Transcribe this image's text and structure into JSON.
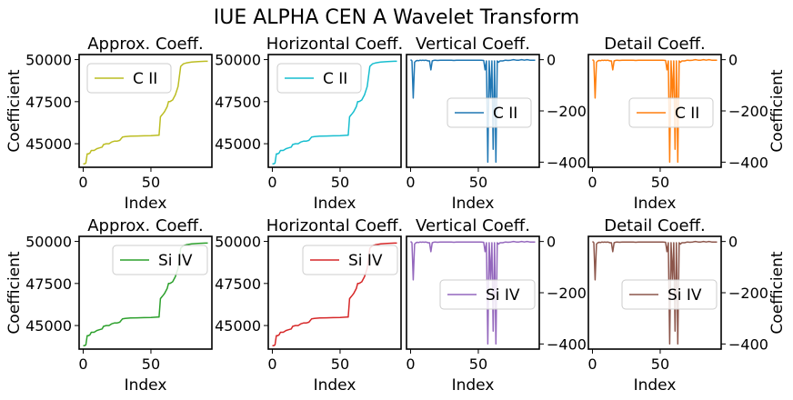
{
  "figure": {
    "title": "IUE ALPHA CEN A Wavelet Transform"
  },
  "chart_data": [
    {
      "type": "line",
      "title": "Approx. Coeff.",
      "xlabel": "Index",
      "ylabel": "Coefficient",
      "yticks": [
        45000,
        47500,
        50000
      ],
      "xticks": [
        0,
        50
      ],
      "xlim": [
        -3,
        95
      ],
      "ylim": [
        43600,
        50300
      ],
      "legend_position": "upper left",
      "series": [
        {
          "name": "C II",
          "color": "#bcbd22",
          "shape": "approx"
        }
      ]
    },
    {
      "type": "line",
      "title": "Horizontal Coeff.",
      "xlabel": "Index",
      "ylabel": "",
      "yticks": [
        45000,
        47500,
        50000
      ],
      "xticks": [
        0,
        50
      ],
      "xlim": [
        -3,
        95
      ],
      "ylim": [
        43600,
        50300
      ],
      "legend_position": "upper left",
      "series": [
        {
          "name": "C II",
          "color": "#17becf",
          "shape": "approx"
        }
      ]
    },
    {
      "type": "line",
      "title": "Vertical Coeff.",
      "xlabel": "Index",
      "ylabel": "",
      "yticks": [
        -400,
        -200,
        0
      ],
      "xticks": [
        0,
        50
      ],
      "xlim": [
        -3,
        95
      ],
      "ylim": [
        -420,
        20
      ],
      "legend_position": "center right",
      "series": [
        {
          "name": "C II",
          "color": "#1f77b4",
          "shape": "detail"
        }
      ]
    },
    {
      "type": "line",
      "title": "Detail Coeff.",
      "xlabel": "Index",
      "ylabel": "Coefficient",
      "yticks": [
        -400,
        -200,
        0
      ],
      "xticks": [
        0,
        50
      ],
      "xlim": [
        -3,
        95
      ],
      "ylim": [
        -420,
        20
      ],
      "legend_position": "center right",
      "series": [
        {
          "name": "C II",
          "color": "#ff7f0e",
          "shape": "detail"
        }
      ]
    },
    {
      "type": "line",
      "title": "Approx. Coeff.",
      "xlabel": "Index",
      "ylabel": "Coefficient",
      "yticks": [
        45000,
        47500,
        50000
      ],
      "xticks": [
        0,
        50
      ],
      "xlim": [
        -3,
        95
      ],
      "ylim": [
        43600,
        50300
      ],
      "legend_position": "upper right",
      "series": [
        {
          "name": "Si IV",
          "color": "#2ca02c",
          "shape": "approx"
        }
      ]
    },
    {
      "type": "line",
      "title": "Horizontal Coeff.",
      "xlabel": "Index",
      "ylabel": "",
      "yticks": [
        45000,
        47500,
        50000
      ],
      "xticks": [
        0,
        50
      ],
      "xlim": [
        -3,
        95
      ],
      "ylim": [
        43600,
        50300
      ],
      "legend_position": "upper right",
      "series": [
        {
          "name": "Si IV",
          "color": "#d62728",
          "shape": "approx"
        }
      ]
    },
    {
      "type": "line",
      "title": "Vertical Coeff.",
      "xlabel": "Index",
      "ylabel": "",
      "yticks": [
        -400,
        -200,
        0
      ],
      "xticks": [
        0,
        50
      ],
      "xlim": [
        -3,
        95
      ],
      "ylim": [
        -420,
        20
      ],
      "legend_position": "center right",
      "series": [
        {
          "name": "Si IV",
          "color": "#9467bd",
          "shape": "detail"
        }
      ]
    },
    {
      "type": "line",
      "title": "Detail Coeff.",
      "xlabel": "Index",
      "ylabel": "Coefficient",
      "yticks": [
        -400,
        -200,
        0
      ],
      "xticks": [
        0,
        50
      ],
      "xlim": [
        -3,
        95
      ],
      "ylim": [
        -420,
        20
      ],
      "legend_position": "center right",
      "series": [
        {
          "name": "Si IV",
          "color": "#8c564b",
          "shape": "detail"
        }
      ]
    }
  ],
  "series_shapes": {
    "approx": {
      "x": [
        0,
        1,
        2,
        3,
        4,
        5,
        6,
        7,
        8,
        9,
        10,
        12,
        14,
        15,
        17,
        19,
        21,
        23,
        25,
        27,
        29,
        31,
        35,
        40,
        45,
        50,
        55,
        56,
        57,
        58,
        59,
        60,
        62,
        63,
        64,
        66,
        68,
        70,
        72,
        74,
        76,
        80,
        85,
        90,
        92
      ],
      "y": [
        43800,
        43800,
        43850,
        44400,
        44400,
        44450,
        44600,
        44600,
        44600,
        44650,
        44700,
        44750,
        44800,
        44950,
        45000,
        45000,
        45100,
        45150,
        45150,
        45200,
        45400,
        45420,
        45450,
        45460,
        45470,
        45480,
        45500,
        45500,
        46600,
        46700,
        46800,
        46900,
        47200,
        47500,
        47500,
        47600,
        47900,
        48400,
        49600,
        49750,
        49800,
        49850,
        49880,
        49900,
        49900
      ]
    },
    "detail": {
      "x": [
        0,
        1,
        2,
        3,
        4,
        5,
        6,
        7,
        8,
        9,
        10,
        11,
        12,
        13,
        14,
        15,
        16,
        17,
        18,
        20,
        22,
        24,
        26,
        28,
        30,
        32,
        34,
        36,
        38,
        40,
        42,
        44,
        46,
        48,
        50,
        52,
        54,
        55,
        56,
        57,
        58,
        59,
        60,
        61,
        62,
        63,
        64,
        65,
        66,
        68,
        70,
        72,
        74,
        76,
        78,
        80,
        82,
        84,
        86,
        88,
        90,
        92
      ],
      "y": [
        0,
        -5,
        -150,
        -10,
        -5,
        -3,
        -4,
        -2,
        -3,
        -2,
        -3,
        -2,
        -3,
        -5,
        -5,
        -40,
        -5,
        -3,
        -2,
        -3,
        -2,
        -2,
        -2,
        -2,
        -2,
        -3,
        -2,
        -2,
        -2,
        -2,
        -2,
        -2,
        -2,
        -2,
        -2,
        -2,
        -3,
        -40,
        -5,
        -400,
        -5,
        -150,
        -5,
        -350,
        -5,
        -400,
        -5,
        -10,
        -5,
        -5,
        -2,
        -3,
        -2,
        0,
        -2,
        -2,
        0,
        -2,
        0,
        -2,
        -2,
        -2
      ]
    }
  }
}
